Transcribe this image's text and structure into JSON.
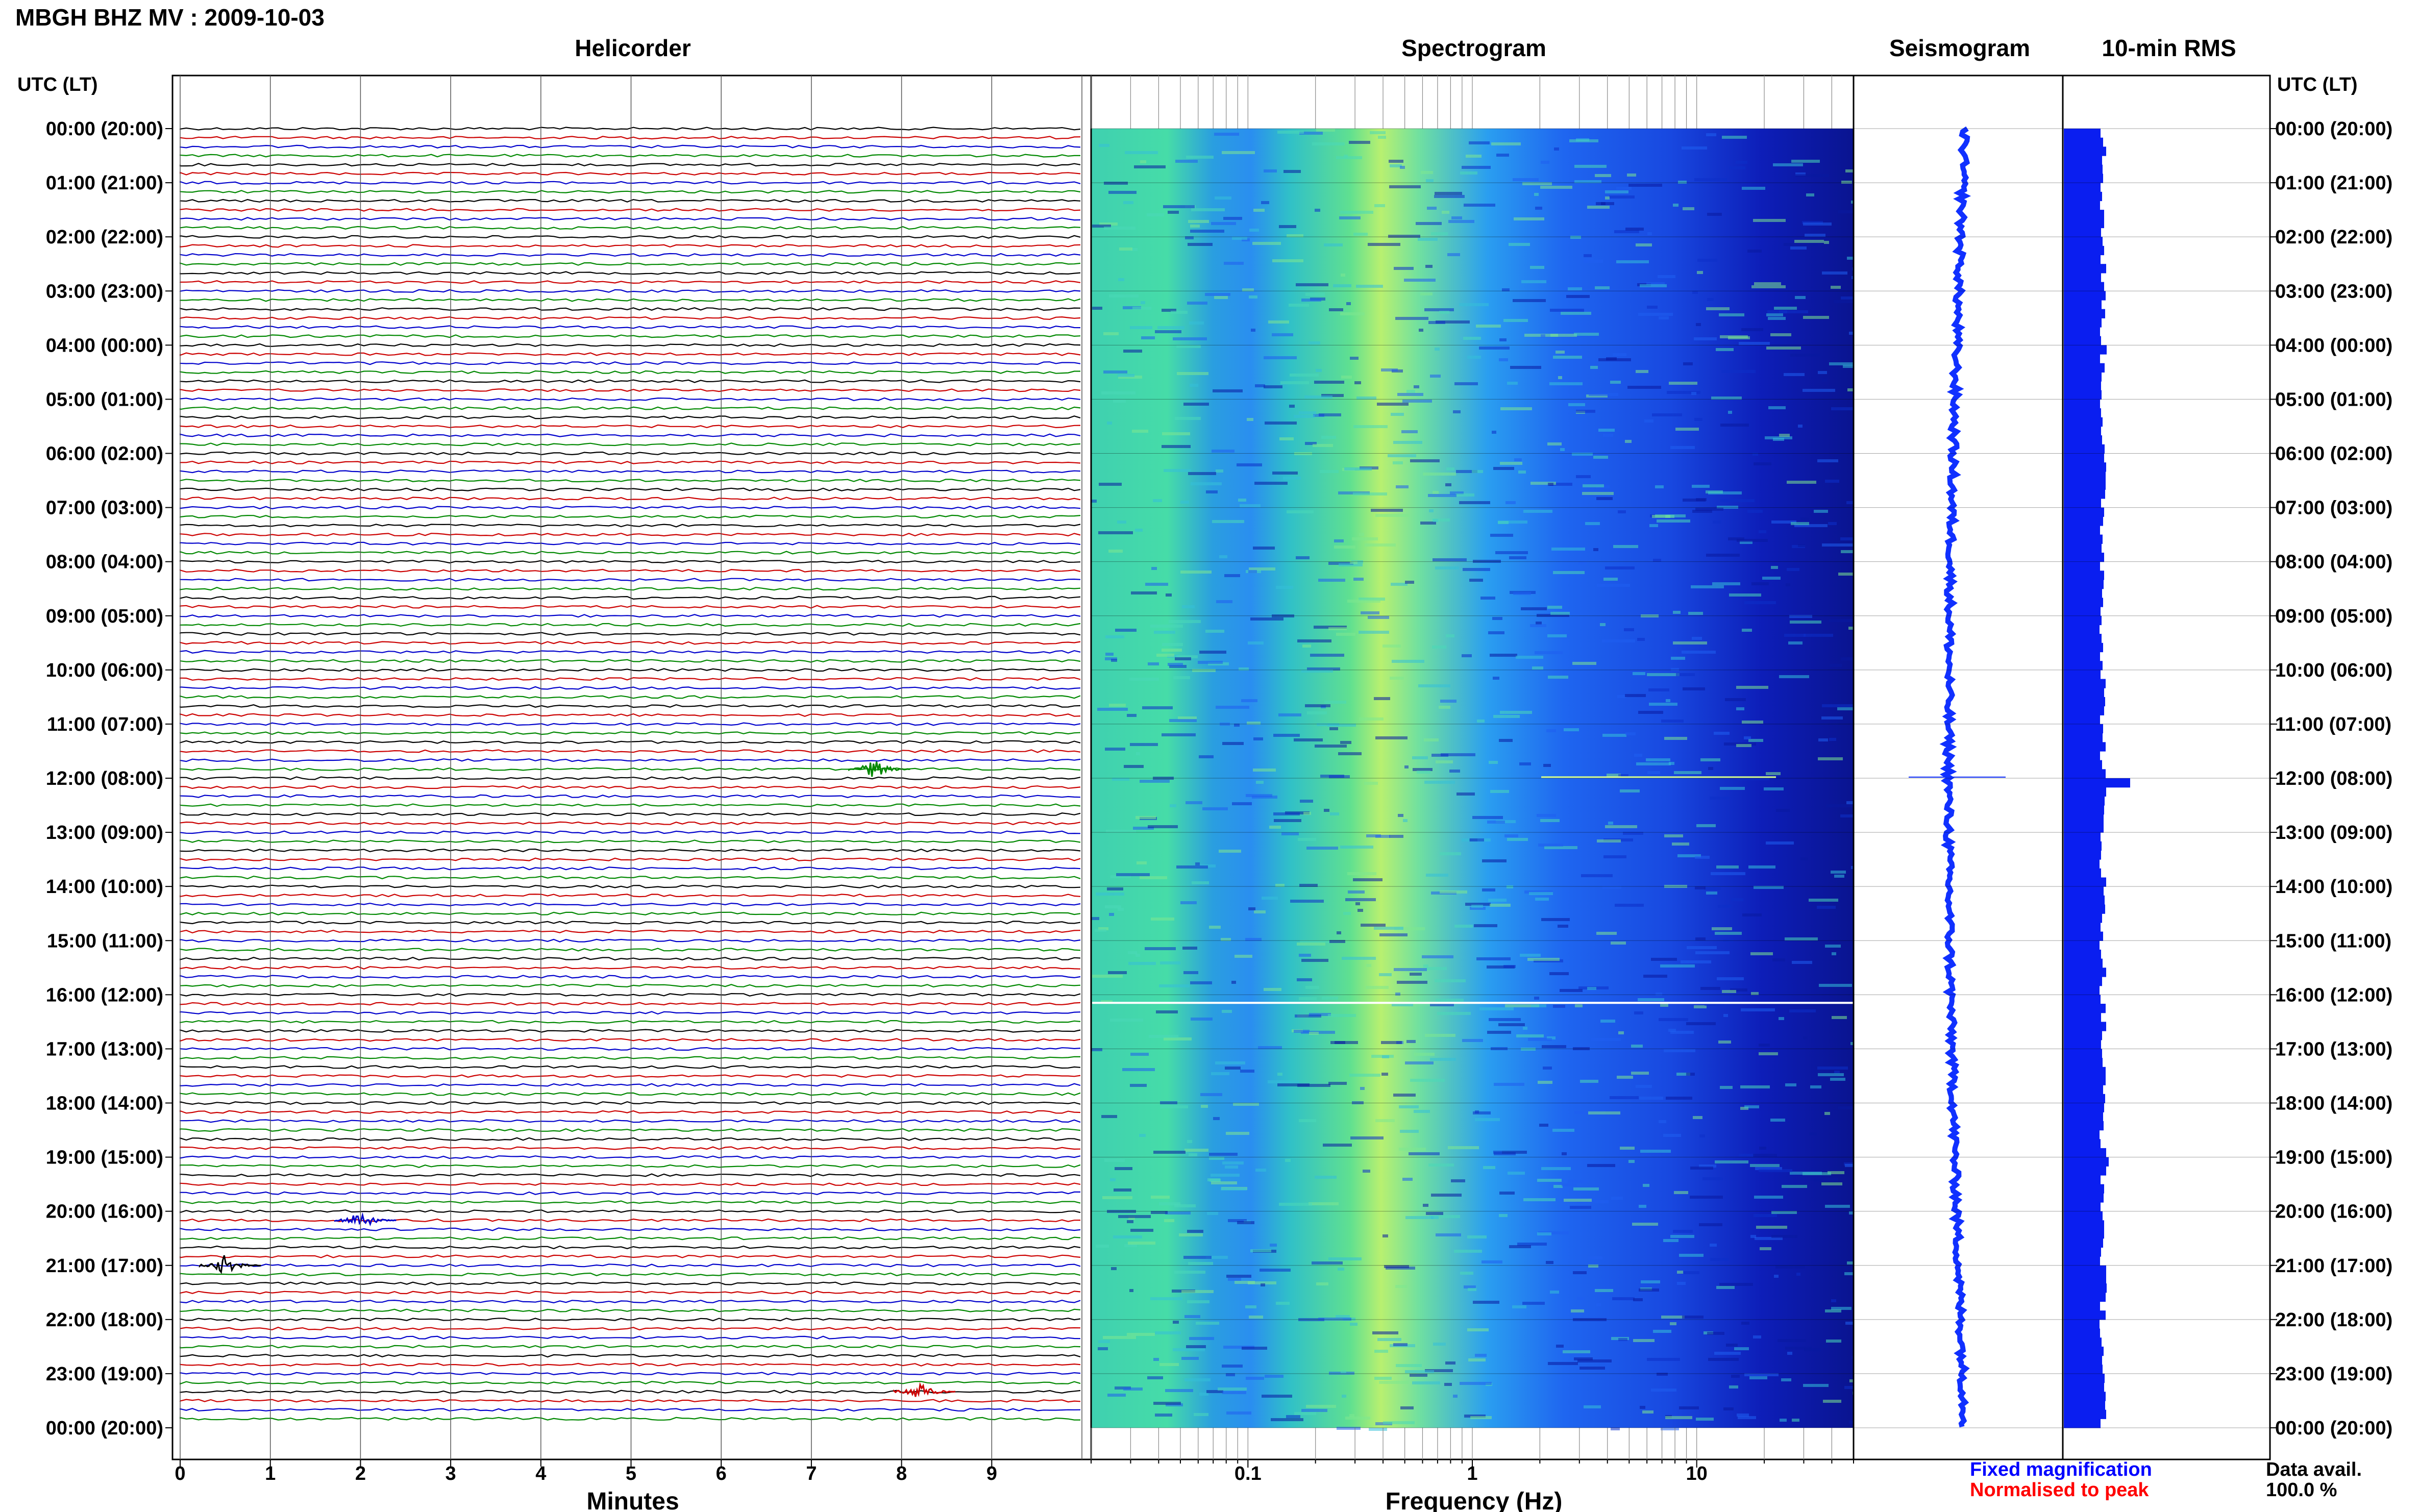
{
  "header": {
    "title": "MBGH BHZ MV : 2009-10-03"
  },
  "panels": {
    "helicorder": "Helicorder",
    "spectrogram": "Spectrogram",
    "seismogram": "Seismogram",
    "rms": "10-min RMS"
  },
  "time_axis": {
    "title_left": "UTC (LT)",
    "title_right": "UTC (LT)",
    "labels": [
      "00:00 (20:00)",
      "01:00 (21:00)",
      "02:00 (22:00)",
      "03:00 (23:00)",
      "04:00 (00:00)",
      "05:00 (01:00)",
      "06:00 (02:00)",
      "07:00 (03:00)",
      "08:00 (04:00)",
      "09:00 (05:00)",
      "10:00 (06:00)",
      "11:00 (07:00)",
      "12:00 (08:00)",
      "13:00 (09:00)",
      "14:00 (10:00)",
      "15:00 (11:00)",
      "16:00 (12:00)",
      "17:00 (13:00)",
      "18:00 (14:00)",
      "19:00 (15:00)",
      "20:00 (16:00)",
      "21:00 (17:00)",
      "22:00 (18:00)",
      "23:00 (19:00)",
      "00:00 (20:00)"
    ]
  },
  "footer": {
    "fixed_mag": "Fixed magnification",
    "normalised": "Normalised to peak",
    "data_avail_label": "Data avail.",
    "data_avail_value": "100.0 %"
  },
  "colors": {
    "trace_cycle": [
      "#000000",
      "#cc0000",
      "#0000cc",
      "#008800"
    ],
    "fixed_mag": "#0000ff",
    "normalised": "#ff0000",
    "rms_bar": "#0a1ef0",
    "seismo": "#1030ff"
  },
  "chart_data": [
    {
      "type": "line",
      "title": "Helicorder",
      "xlabel": "Minutes",
      "x_ticks": [
        0,
        1,
        2,
        3,
        4,
        5,
        6,
        7,
        8,
        9
      ],
      "xlim": [
        0,
        10
      ],
      "rows_per_hour": 6,
      "events": [
        {
          "time_utc": "11:50",
          "minute": 7.7,
          "trace_color": "green"
        },
        {
          "time_utc": "20:10",
          "minute": 2.0,
          "trace_color": "blue"
        },
        {
          "time_utc": "21:00",
          "minute": 0.5,
          "trace_color": "black"
        },
        {
          "time_utc": "23:20",
          "minute": 8.2,
          "trace_color": "red"
        }
      ]
    },
    {
      "type": "heatmap",
      "title": "Spectrogram",
      "xlabel": "Frequency (Hz)",
      "x_scale": "log",
      "x_ticks": [
        0.1,
        1,
        10
      ],
      "x_tick_labels": [
        "0.1",
        "1",
        "10"
      ],
      "xlim": [
        0.02,
        50
      ],
      "peak_frequency_hz": 0.4
    },
    {
      "type": "line",
      "title": "Seismogram",
      "annotation": "12:00 transient"
    },
    {
      "type": "bar",
      "title": "10-min RMS",
      "note": "spike at 12:00 (08:00) and 19:00 (15:00)"
    }
  ]
}
